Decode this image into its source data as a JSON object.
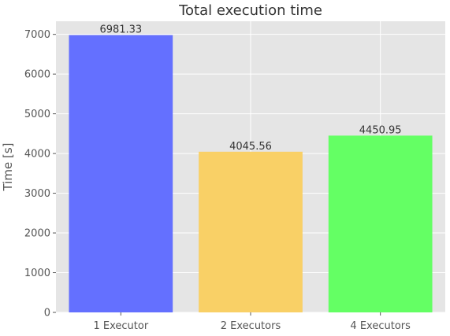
{
  "chart_data": {
    "type": "bar",
    "title": "Total execution time",
    "xlabel": "",
    "ylabel": "Time [s]",
    "categories": [
      "1 Executor",
      "2 Executors",
      "4 Executors"
    ],
    "values": [
      6981.33,
      4045.56,
      4450.95
    ],
    "value_labels": [
      "6981.33",
      "4045.56",
      "4450.95"
    ],
    "colors": [
      "#6470ff",
      "#f9d066",
      "#64ff64"
    ],
    "yticks": [
      "0",
      "1000",
      "2000",
      "3000",
      "4000",
      "5000",
      "6000",
      "7000"
    ],
    "ylim": [
      0,
      7330.4
    ],
    "grid": true,
    "legend": "none"
  }
}
